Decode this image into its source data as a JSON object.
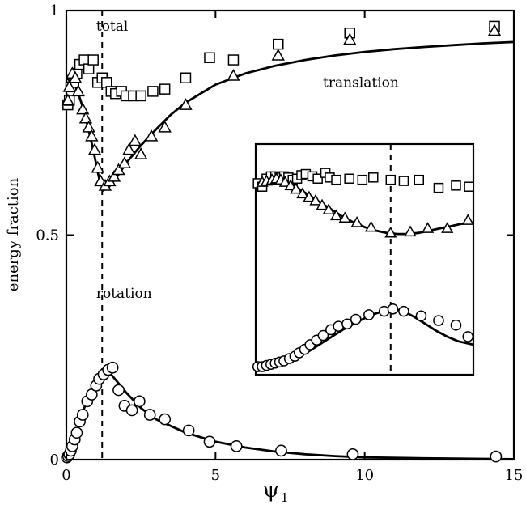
{
  "chart_data": [
    {
      "type": "scatter",
      "title": "",
      "xlabel": "ψ",
      "xlabel_subscript": "1",
      "ylabel": "energy fraction",
      "xlim": [
        0,
        15
      ],
      "ylim": [
        0,
        1
      ],
      "x_ticks": [
        0,
        5,
        10,
        15
      ],
      "y_ticks": [
        0,
        0.5,
        1
      ],
      "x_tick_labels": [
        "0",
        "5",
        "10",
        "15"
      ],
      "y_tick_labels": [
        "0",
        "0.5",
        "1"
      ],
      "grid": false,
      "vertical_dashed_line_x": 1.2,
      "annotations": [
        {
          "text": "total",
          "x": 1.0,
          "y": 0.955
        },
        {
          "text": "translation",
          "x": 8.6,
          "y": 0.83
        },
        {
          "text": "rotation",
          "x": 1.0,
          "y": 0.36
        }
      ],
      "series": [
        {
          "marker": "square",
          "points": [
            [
              0.05,
              0.79
            ],
            [
              0.1,
              0.8
            ],
            [
              0.15,
              0.83
            ],
            [
              0.25,
              0.84
            ],
            [
              0.35,
              0.86
            ],
            [
              0.45,
              0.88
            ],
            [
              0.6,
              0.89
            ],
            [
              0.75,
              0.87
            ],
            [
              0.9,
              0.89
            ],
            [
              1.05,
              0.84
            ],
            [
              1.2,
              0.85
            ],
            [
              1.35,
              0.84
            ],
            [
              1.5,
              0.82
            ],
            [
              1.65,
              0.815
            ],
            [
              1.85,
              0.82
            ],
            [
              2.0,
              0.81
            ],
            [
              2.25,
              0.81
            ],
            [
              2.5,
              0.81
            ],
            [
              2.9,
              0.82
            ],
            [
              3.3,
              0.825
            ],
            [
              4.0,
              0.85
            ],
            [
              4.8,
              0.895
            ],
            [
              5.6,
              0.89
            ],
            [
              7.1,
              0.925
            ],
            [
              9.5,
              0.95
            ],
            [
              14.35,
              0.965
            ]
          ]
        },
        {
          "marker": "triangle",
          "points": [
            [
              0.05,
              0.8
            ],
            [
              0.1,
              0.83
            ],
            [
              0.2,
              0.86
            ],
            [
              0.3,
              0.85
            ],
            [
              0.4,
              0.82
            ],
            [
              0.55,
              0.78
            ],
            [
              0.65,
              0.76
            ],
            [
              0.75,
              0.74
            ],
            [
              0.85,
              0.72
            ],
            [
              0.95,
              0.69
            ],
            [
              1.05,
              0.65
            ],
            [
              1.15,
              0.62
            ],
            [
              1.3,
              0.61
            ],
            [
              1.45,
              0.62
            ],
            [
              1.6,
              0.63
            ],
            [
              1.75,
              0.645
            ],
            [
              1.95,
              0.66
            ],
            [
              2.1,
              0.69
            ],
            [
              2.3,
              0.71
            ],
            [
              2.5,
              0.68
            ],
            [
              2.85,
              0.72
            ],
            [
              3.3,
              0.74
            ],
            [
              4.0,
              0.79
            ],
            [
              5.6,
              0.855
            ],
            [
              7.1,
              0.9
            ],
            [
              9.5,
              0.935
            ],
            [
              14.35,
              0.955
            ]
          ]
        },
        {
          "marker": "circle",
          "points": [
            [
              0.02,
              0.005
            ],
            [
              0.06,
              0.008
            ],
            [
              0.1,
              0.012
            ],
            [
              0.15,
              0.02
            ],
            [
              0.2,
              0.03
            ],
            [
              0.28,
              0.045
            ],
            [
              0.35,
              0.06
            ],
            [
              0.45,
              0.085
            ],
            [
              0.55,
              0.1
            ],
            [
              0.7,
              0.13
            ],
            [
              0.85,
              0.145
            ],
            [
              1.0,
              0.165
            ],
            [
              1.1,
              0.18
            ],
            [
              1.25,
              0.19
            ],
            [
              1.4,
              0.2
            ],
            [
              1.55,
              0.205
            ],
            [
              1.75,
              0.155
            ],
            [
              1.95,
              0.12
            ],
            [
              2.2,
              0.11
            ],
            [
              2.45,
              0.13
            ],
            [
              2.8,
              0.1
            ],
            [
              3.3,
              0.09
            ],
            [
              4.1,
              0.065
            ],
            [
              4.8,
              0.04
            ],
            [
              5.7,
              0.03
            ],
            [
              7.2,
              0.02
            ],
            [
              9.6,
              0.012
            ],
            [
              14.4,
              0.007
            ]
          ]
        }
      ],
      "lines": [
        {
          "name": "translation",
          "points": [
            [
              0,
              0.85
            ],
            [
              0.3,
              0.835
            ],
            [
              0.6,
              0.775
            ],
            [
              0.9,
              0.69
            ],
            [
              1.1,
              0.625
            ],
            [
              1.25,
              0.6
            ],
            [
              1.4,
              0.605
            ],
            [
              1.7,
              0.63
            ],
            [
              2.0,
              0.66
            ],
            [
              2.5,
              0.7
            ],
            [
              3,
              0.735
            ],
            [
              3.5,
              0.768
            ],
            [
              4,
              0.795
            ],
            [
              5,
              0.835
            ],
            [
              6,
              0.86
            ],
            [
              7,
              0.877
            ],
            [
              8,
              0.89
            ],
            [
              9,
              0.9
            ],
            [
              10,
              0.908
            ],
            [
              11,
              0.914
            ],
            [
              12,
              0.919
            ],
            [
              13,
              0.923
            ],
            [
              14,
              0.927
            ],
            [
              15,
              0.93
            ]
          ]
        },
        {
          "name": "rotation",
          "points": [
            [
              0,
              0
            ],
            [
              0.2,
              0.035
            ],
            [
              0.4,
              0.075
            ],
            [
              0.6,
              0.115
            ],
            [
              0.8,
              0.15
            ],
            [
              1.0,
              0.18
            ],
            [
              1.15,
              0.195
            ],
            [
              1.3,
              0.2
            ],
            [
              1.5,
              0.19
            ],
            [
              1.75,
              0.17
            ],
            [
              2.0,
              0.15
            ],
            [
              2.5,
              0.115
            ],
            [
              3,
              0.09
            ],
            [
              4,
              0.06
            ],
            [
              5,
              0.04
            ],
            [
              6,
              0.027
            ],
            [
              7,
              0.018
            ],
            [
              8,
              0.012
            ],
            [
              9,
              0.008
            ],
            [
              10,
              0.005
            ],
            [
              12,
              0.003
            ],
            [
              15,
              0.001
            ]
          ]
        }
      ]
    },
    {
      "type": "scatter",
      "title": "",
      "inset": true,
      "xlim": [
        0,
        10
      ],
      "ylim": [
        0,
        10
      ],
      "x_ticks": [],
      "y_ticks": [],
      "vertical_dashed_line_x": 6.2,
      "series": [
        {
          "marker": "square",
          "points": [
            [
              0.1,
              8.3
            ],
            [
              0.3,
              8.15
            ],
            [
              0.5,
              8.5
            ],
            [
              0.7,
              8.6
            ],
            [
              0.9,
              8.6
            ],
            [
              1.1,
              8.55
            ],
            [
              1.3,
              8.6
            ],
            [
              1.5,
              8.55
            ],
            [
              1.7,
              8.45
            ],
            [
              1.9,
              8.5
            ],
            [
              2.1,
              8.65
            ],
            [
              2.3,
              8.7
            ],
            [
              2.6,
              8.6
            ],
            [
              2.85,
              8.5
            ],
            [
              3.2,
              8.75
            ],
            [
              3.4,
              8.55
            ],
            [
              3.7,
              8.45
            ],
            [
              4.3,
              8.5
            ],
            [
              4.9,
              8.45
            ],
            [
              5.4,
              8.55
            ],
            [
              6.2,
              8.45
            ],
            [
              6.8,
              8.4
            ],
            [
              7.5,
              8.45
            ],
            [
              8.4,
              8.1
            ],
            [
              9.2,
              8.2
            ],
            [
              9.8,
              8.15
            ]
          ]
        },
        {
          "marker": "triangle",
          "points": [
            [
              0.3,
              8.35
            ],
            [
              0.5,
              8.4
            ],
            [
              0.75,
              8.45
            ],
            [
              0.95,
              8.5
            ],
            [
              1.15,
              8.45
            ],
            [
              1.35,
              8.35
            ],
            [
              1.6,
              8.2
            ],
            [
              1.85,
              8.05
            ],
            [
              2.15,
              7.85
            ],
            [
              2.45,
              7.7
            ],
            [
              2.75,
              7.55
            ],
            [
              3.05,
              7.35
            ],
            [
              3.35,
              7.15
            ],
            [
              3.7,
              6.9
            ],
            [
              4.1,
              6.8
            ],
            [
              4.65,
              6.6
            ],
            [
              5.3,
              6.4
            ],
            [
              6.2,
              6.15
            ],
            [
              7.1,
              6.2
            ],
            [
              7.9,
              6.35
            ],
            [
              8.8,
              6.35
            ],
            [
              9.75,
              6.7
            ]
          ]
        },
        {
          "marker": "circle",
          "points": [
            [
              0.1,
              0.35
            ],
            [
              0.3,
              0.35
            ],
            [
              0.5,
              0.4
            ],
            [
              0.7,
              0.45
            ],
            [
              0.9,
              0.5
            ],
            [
              1.1,
              0.55
            ],
            [
              1.3,
              0.6
            ],
            [
              1.55,
              0.7
            ],
            [
              1.8,
              0.8
            ],
            [
              2.0,
              0.95
            ],
            [
              2.25,
              1.1
            ],
            [
              2.5,
              1.3
            ],
            [
              2.8,
              1.5
            ],
            [
              3.1,
              1.7
            ],
            [
              3.45,
              1.95
            ],
            [
              3.8,
              2.1
            ],
            [
              4.2,
              2.2
            ],
            [
              4.6,
              2.4
            ],
            [
              5.2,
              2.6
            ],
            [
              5.9,
              2.75
            ],
            [
              6.3,
              2.85
            ],
            [
              6.8,
              2.75
            ],
            [
              7.6,
              2.55
            ],
            [
              8.4,
              2.35
            ],
            [
              9.2,
              2.15
            ],
            [
              9.75,
              1.65
            ]
          ]
        }
      ],
      "lines": [
        {
          "name": "translation",
          "points": [
            [
              0,
              8.25
            ],
            [
              0.5,
              8.3
            ],
            [
              1,
              8.35
            ],
            [
              1.5,
              8.3
            ],
            [
              2,
              8.05
            ],
            [
              2.5,
              7.75
            ],
            [
              3,
              7.45
            ],
            [
              3.5,
              7.15
            ],
            [
              4,
              6.85
            ],
            [
              4.5,
              6.6
            ],
            [
              5,
              6.4
            ],
            [
              5.5,
              6.25
            ],
            [
              6,
              6.15
            ],
            [
              6.5,
              6.1
            ],
            [
              7,
              6.1
            ],
            [
              7.5,
              6.15
            ],
            [
              8,
              6.25
            ],
            [
              8.5,
              6.35
            ],
            [
              9,
              6.45
            ],
            [
              9.5,
              6.55
            ],
            [
              10,
              6.6
            ]
          ]
        },
        {
          "name": "rotation",
          "points": [
            [
              0,
              0.3
            ],
            [
              0.5,
              0.35
            ],
            [
              1,
              0.45
            ],
            [
              1.5,
              0.6
            ],
            [
              2,
              0.8
            ],
            [
              2.5,
              1.05
            ],
            [
              3,
              1.35
            ],
            [
              3.5,
              1.65
            ],
            [
              4,
              1.95
            ],
            [
              4.5,
              2.2
            ],
            [
              5,
              2.45
            ],
            [
              5.5,
              2.65
            ],
            [
              6,
              2.8
            ],
            [
              6.3,
              2.85
            ],
            [
              6.8,
              2.75
            ],
            [
              7.3,
              2.5
            ],
            [
              7.8,
              2.2
            ],
            [
              8.3,
              1.9
            ],
            [
              8.8,
              1.65
            ],
            [
              9.3,
              1.45
            ],
            [
              10,
              1.3
            ]
          ]
        }
      ]
    }
  ]
}
